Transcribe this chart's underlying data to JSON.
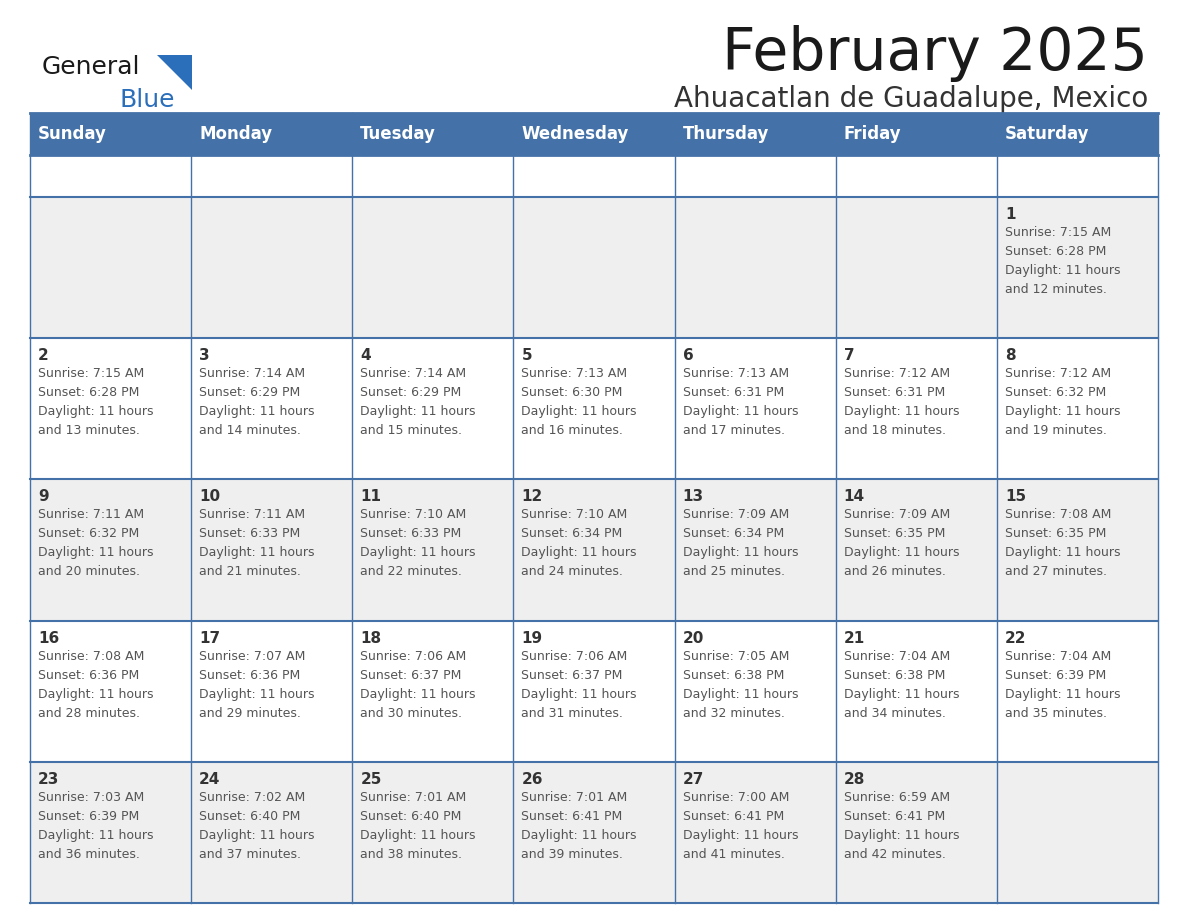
{
  "title": "February 2025",
  "subtitle": "Ahuacatlan de Guadalupe, Mexico",
  "days_of_week": [
    "Sunday",
    "Monday",
    "Tuesday",
    "Wednesday",
    "Thursday",
    "Friday",
    "Saturday"
  ],
  "header_bg": "#4472a8",
  "header_text": "#ffffff",
  "cell_bg_odd": "#efefef",
  "cell_bg_even": "#ffffff",
  "grid_line_color": "#4472a8",
  "day_number_color": "#333333",
  "info_text_color": "#555555",
  "title_color": "#1a1a1a",
  "subtitle_color": "#333333",
  "logo_general_color": "#1a1a1a",
  "logo_blue_color": "#2b6fba",
  "calendar_data": [
    {
      "day": 1,
      "col": 6,
      "row": 0,
      "sunrise": "7:15 AM",
      "sunset": "6:28 PM",
      "daylight_h": "11 hours",
      "daylight_m": "12 minutes"
    },
    {
      "day": 2,
      "col": 0,
      "row": 1,
      "sunrise": "7:15 AM",
      "sunset": "6:28 PM",
      "daylight_h": "11 hours",
      "daylight_m": "13 minutes"
    },
    {
      "day": 3,
      "col": 1,
      "row": 1,
      "sunrise": "7:14 AM",
      "sunset": "6:29 PM",
      "daylight_h": "11 hours",
      "daylight_m": "14 minutes"
    },
    {
      "day": 4,
      "col": 2,
      "row": 1,
      "sunrise": "7:14 AM",
      "sunset": "6:29 PM",
      "daylight_h": "11 hours",
      "daylight_m": "15 minutes"
    },
    {
      "day": 5,
      "col": 3,
      "row": 1,
      "sunrise": "7:13 AM",
      "sunset": "6:30 PM",
      "daylight_h": "11 hours",
      "daylight_m": "16 minutes"
    },
    {
      "day": 6,
      "col": 4,
      "row": 1,
      "sunrise": "7:13 AM",
      "sunset": "6:31 PM",
      "daylight_h": "11 hours",
      "daylight_m": "17 minutes"
    },
    {
      "day": 7,
      "col": 5,
      "row": 1,
      "sunrise": "7:12 AM",
      "sunset": "6:31 PM",
      "daylight_h": "11 hours",
      "daylight_m": "18 minutes"
    },
    {
      "day": 8,
      "col": 6,
      "row": 1,
      "sunrise": "7:12 AM",
      "sunset": "6:32 PM",
      "daylight_h": "11 hours",
      "daylight_m": "19 minutes"
    },
    {
      "day": 9,
      "col": 0,
      "row": 2,
      "sunrise": "7:11 AM",
      "sunset": "6:32 PM",
      "daylight_h": "11 hours",
      "daylight_m": "20 minutes"
    },
    {
      "day": 10,
      "col": 1,
      "row": 2,
      "sunrise": "7:11 AM",
      "sunset": "6:33 PM",
      "daylight_h": "11 hours",
      "daylight_m": "21 minutes"
    },
    {
      "day": 11,
      "col": 2,
      "row": 2,
      "sunrise": "7:10 AM",
      "sunset": "6:33 PM",
      "daylight_h": "11 hours",
      "daylight_m": "22 minutes"
    },
    {
      "day": 12,
      "col": 3,
      "row": 2,
      "sunrise": "7:10 AM",
      "sunset": "6:34 PM",
      "daylight_h": "11 hours",
      "daylight_m": "24 minutes"
    },
    {
      "day": 13,
      "col": 4,
      "row": 2,
      "sunrise": "7:09 AM",
      "sunset": "6:34 PM",
      "daylight_h": "11 hours",
      "daylight_m": "25 minutes"
    },
    {
      "day": 14,
      "col": 5,
      "row": 2,
      "sunrise": "7:09 AM",
      "sunset": "6:35 PM",
      "daylight_h": "11 hours",
      "daylight_m": "26 minutes"
    },
    {
      "day": 15,
      "col": 6,
      "row": 2,
      "sunrise": "7:08 AM",
      "sunset": "6:35 PM",
      "daylight_h": "11 hours",
      "daylight_m": "27 minutes"
    },
    {
      "day": 16,
      "col": 0,
      "row": 3,
      "sunrise": "7:08 AM",
      "sunset": "6:36 PM",
      "daylight_h": "11 hours",
      "daylight_m": "28 minutes"
    },
    {
      "day": 17,
      "col": 1,
      "row": 3,
      "sunrise": "7:07 AM",
      "sunset": "6:36 PM",
      "daylight_h": "11 hours",
      "daylight_m": "29 minutes"
    },
    {
      "day": 18,
      "col": 2,
      "row": 3,
      "sunrise": "7:06 AM",
      "sunset": "6:37 PM",
      "daylight_h": "11 hours",
      "daylight_m": "30 minutes"
    },
    {
      "day": 19,
      "col": 3,
      "row": 3,
      "sunrise": "7:06 AM",
      "sunset": "6:37 PM",
      "daylight_h": "11 hours",
      "daylight_m": "31 minutes"
    },
    {
      "day": 20,
      "col": 4,
      "row": 3,
      "sunrise": "7:05 AM",
      "sunset": "6:38 PM",
      "daylight_h": "11 hours",
      "daylight_m": "32 minutes"
    },
    {
      "day": 21,
      "col": 5,
      "row": 3,
      "sunrise": "7:04 AM",
      "sunset": "6:38 PM",
      "daylight_h": "11 hours",
      "daylight_m": "34 minutes"
    },
    {
      "day": 22,
      "col": 6,
      "row": 3,
      "sunrise": "7:04 AM",
      "sunset": "6:39 PM",
      "daylight_h": "11 hours",
      "daylight_m": "35 minutes"
    },
    {
      "day": 23,
      "col": 0,
      "row": 4,
      "sunrise": "7:03 AM",
      "sunset": "6:39 PM",
      "daylight_h": "11 hours",
      "daylight_m": "36 minutes"
    },
    {
      "day": 24,
      "col": 1,
      "row": 4,
      "sunrise": "7:02 AM",
      "sunset": "6:40 PM",
      "daylight_h": "11 hours",
      "daylight_m": "37 minutes"
    },
    {
      "day": 25,
      "col": 2,
      "row": 4,
      "sunrise": "7:01 AM",
      "sunset": "6:40 PM",
      "daylight_h": "11 hours",
      "daylight_m": "38 minutes"
    },
    {
      "day": 26,
      "col": 3,
      "row": 4,
      "sunrise": "7:01 AM",
      "sunset": "6:41 PM",
      "daylight_h": "11 hours",
      "daylight_m": "39 minutes"
    },
    {
      "day": 27,
      "col": 4,
      "row": 4,
      "sunrise": "7:00 AM",
      "sunset": "6:41 PM",
      "daylight_h": "11 hours",
      "daylight_m": "41 minutes"
    },
    {
      "day": 28,
      "col": 5,
      "row": 4,
      "sunrise": "6:59 AM",
      "sunset": "6:41 PM",
      "daylight_h": "11 hours",
      "daylight_m": "42 minutes"
    }
  ]
}
